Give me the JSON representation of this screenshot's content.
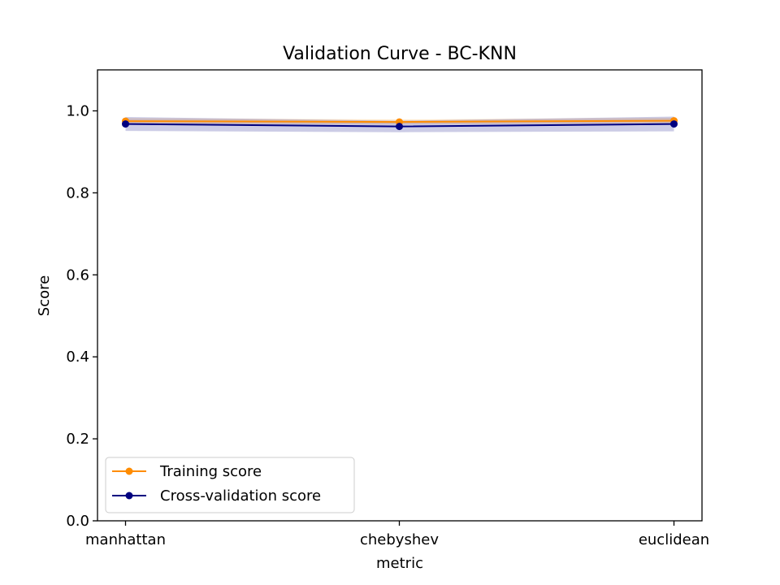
{
  "chart_data": {
    "type": "line",
    "title": "Validation Curve - BC-KNN",
    "xlabel": "metric",
    "ylabel": "Score",
    "categories": [
      "manhattan",
      "chebyshev",
      "euclidean"
    ],
    "ylim": [
      0.0,
      1.1
    ],
    "yticks": [
      "0.0",
      "0.2",
      "0.4",
      "0.6",
      "0.8",
      "1.0"
    ],
    "grid": false,
    "legend_position": "lower-left",
    "series": [
      {
        "name": "Training score",
        "color": "#ff8c00",
        "values": [
          0.975,
          0.973,
          0.976
        ],
        "band_low": [
          0.968,
          0.967,
          0.969
        ],
        "band_high": [
          0.982,
          0.979,
          0.983
        ]
      },
      {
        "name": "Cross-validation score",
        "color": "#000080",
        "values": [
          0.968,
          0.962,
          0.968
        ],
        "band_low": [
          0.951,
          0.948,
          0.95
        ],
        "band_high": [
          0.985,
          0.976,
          0.986
        ]
      }
    ]
  }
}
